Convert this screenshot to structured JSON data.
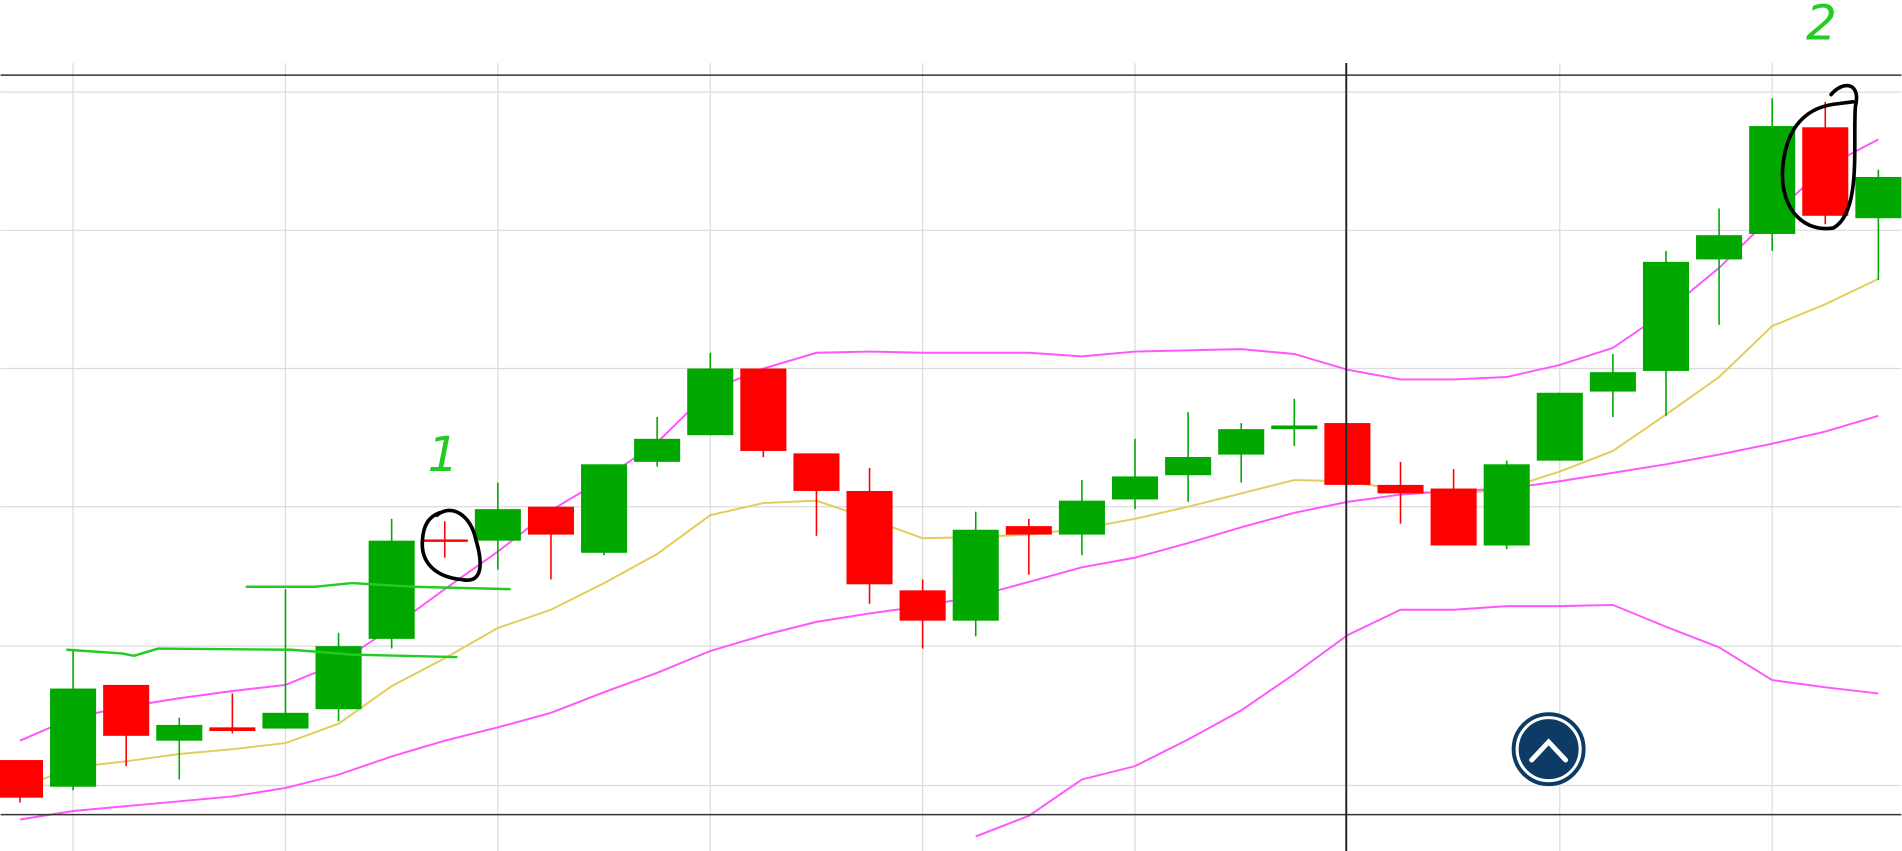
{
  "chart_data": {
    "type": "candlestick",
    "categories": [
      null,
      null,
      null,
      null,
      null,
      null,
      null,
      null,
      null,
      null,
      null,
      null,
      null,
      null,
      null,
      null,
      null,
      null,
      null,
      null,
      null,
      null,
      null,
      null,
      null,
      null,
      null,
      null,
      null,
      null,
      null,
      null,
      null,
      null,
      null,
      null
    ],
    "open": [
      21,
      -1,
      83,
      37,
      48,
      47,
      63,
      121,
      203,
      202,
      230,
      192,
      267,
      289,
      344,
      274,
      243,
      161,
      136,
      214,
      207,
      236,
      256,
      273,
      294,
      299,
      248,
      245,
      198,
      268,
      325,
      342,
      434,
      455,
      543,
      468
    ],
    "high": [
      21,
      111,
      83,
      56,
      76,
      162,
      126,
      220,
      218,
      250,
      230,
      265,
      304,
      357,
      344,
      274,
      262,
      170,
      226,
      220,
      252,
      286,
      308,
      299,
      319,
      299,
      267,
      261,
      268,
      324,
      356,
      441,
      476,
      567,
      564,
      508
    ],
    "low": [
      -14,
      -4,
      16,
      5,
      43,
      47,
      53,
      113,
      188,
      178,
      170,
      190,
      263,
      289,
      271,
      206,
      150,
      113,
      123,
      174,
      190,
      228,
      234,
      250,
      280,
      248,
      216,
      198,
      195,
      268,
      304,
      305,
      380,
      441,
      463,
      417
    ],
    "close": [
      -10,
      80,
      41,
      50,
      45,
      60,
      115,
      202,
      201,
      228,
      207,
      265,
      286,
      344,
      276,
      243,
      166,
      136,
      211,
      207,
      235,
      255,
      271,
      294,
      297,
      248,
      241,
      198,
      265,
      324,
      341,
      432,
      454,
      544,
      470,
      502
    ],
    "up_color": "#00a800",
    "down_color": "#ff0000",
    "overlays": [
      {
        "color": "#ff55ff",
        "values": [
          37,
          56,
          65,
          72,
          78,
          83,
          101,
          130,
          162,
          193,
          227,
          253,
          283,
          326,
          344,
          357,
          358,
          357,
          357,
          357,
          354,
          358,
          359,
          360,
          356,
          343,
          335,
          335,
          337,
          347,
          361,
          391,
          427,
          470,
          510,
          533
        ]
      },
      {
        "color": "#e2cc5a",
        "values": [
          -2,
          15,
          20,
          26,
          30,
          35,
          51,
          82,
          105,
          130,
          145,
          167,
          191,
          223,
          233,
          235,
          220,
          204,
          205,
          207,
          212,
          220,
          230,
          241,
          252,
          251,
          244,
          240,
          245,
          259,
          276,
          306,
          337,
          379,
          397,
          418
        ]
      },
      {
        "color": "#ff55ff",
        "values": [
          -28,
          -21,
          -17,
          -13,
          -9,
          -2,
          9,
          24,
          37,
          48,
          60,
          77,
          93,
          111,
          124,
          135,
          142,
          148,
          156,
          168,
          180,
          188,
          200,
          213,
          225,
          234,
          240,
          243,
          245,
          251,
          258,
          265,
          273,
          282,
          292,
          305
        ]
      },
      {
        "color": "#ff55ff",
        "values": [
          null,
          null,
          null,
          null,
          null,
          null,
          null,
          null,
          null,
          null,
          null,
          null,
          null,
          null,
          null,
          null,
          null,
          null,
          -42,
          -25,
          5,
          16,
          38,
          62,
          92,
          124,
          145,
          145,
          148,
          148,
          149,
          131,
          114,
          87,
          81,
          76
        ]
      }
    ],
    "ylim": [
      -54,
      648
    ],
    "yticks": [
      0,
      115,
      230,
      344,
      458,
      572
    ],
    "grid": true,
    "annotations": [
      {
        "text": "1",
        "color": "#22cc22"
      },
      {
        "text": "2",
        "color": "#22cc22"
      }
    ]
  }
}
